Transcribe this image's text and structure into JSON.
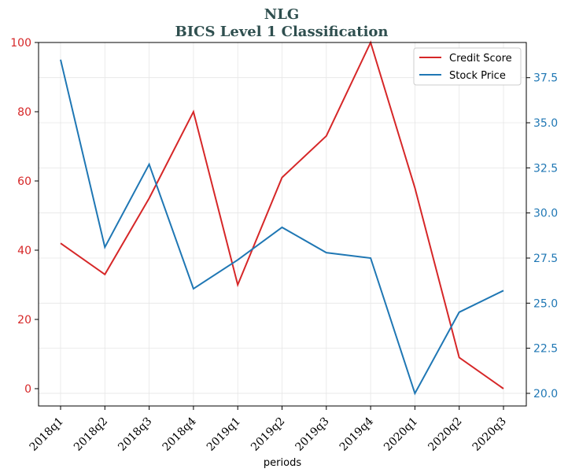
{
  "chart_data": {
    "type": "line",
    "title": "NLG",
    "subtitle": "BICS Level 1 Classification",
    "xlabel": "periods",
    "categories": [
      "2018q1",
      "2018q2",
      "2018q3",
      "2018q4",
      "2019q1",
      "2019q2",
      "2019q3",
      "2019q4",
      "2020q1",
      "2020q2",
      "2020q3"
    ],
    "series": [
      {
        "name": "Credit Score",
        "axis": "left",
        "color": "#d62728",
        "values": [
          42,
          33,
          55,
          80,
          30,
          61,
          73,
          100,
          58,
          9,
          0
        ]
      },
      {
        "name": "Stock Price",
        "axis": "right",
        "color": "#1f77b4",
        "values": [
          38.5,
          28.1,
          32.7,
          25.8,
          27.4,
          29.2,
          27.8,
          27.5,
          20.0,
          24.5,
          25.7
        ]
      }
    ],
    "y_left": {
      "min": -5,
      "max": 100,
      "ticks": [
        0,
        20,
        40,
        60,
        80,
        100
      ],
      "color": "#d62728"
    },
    "y_right": {
      "min": 19.3,
      "max": 39.45,
      "ticks": [
        "20.0",
        "22.5",
        "25.0",
        "27.5",
        "30.0",
        "32.5",
        "35.0",
        "37.5"
      ],
      "color": "#1f77b4"
    },
    "grid": true,
    "legend": "top-right"
  }
}
